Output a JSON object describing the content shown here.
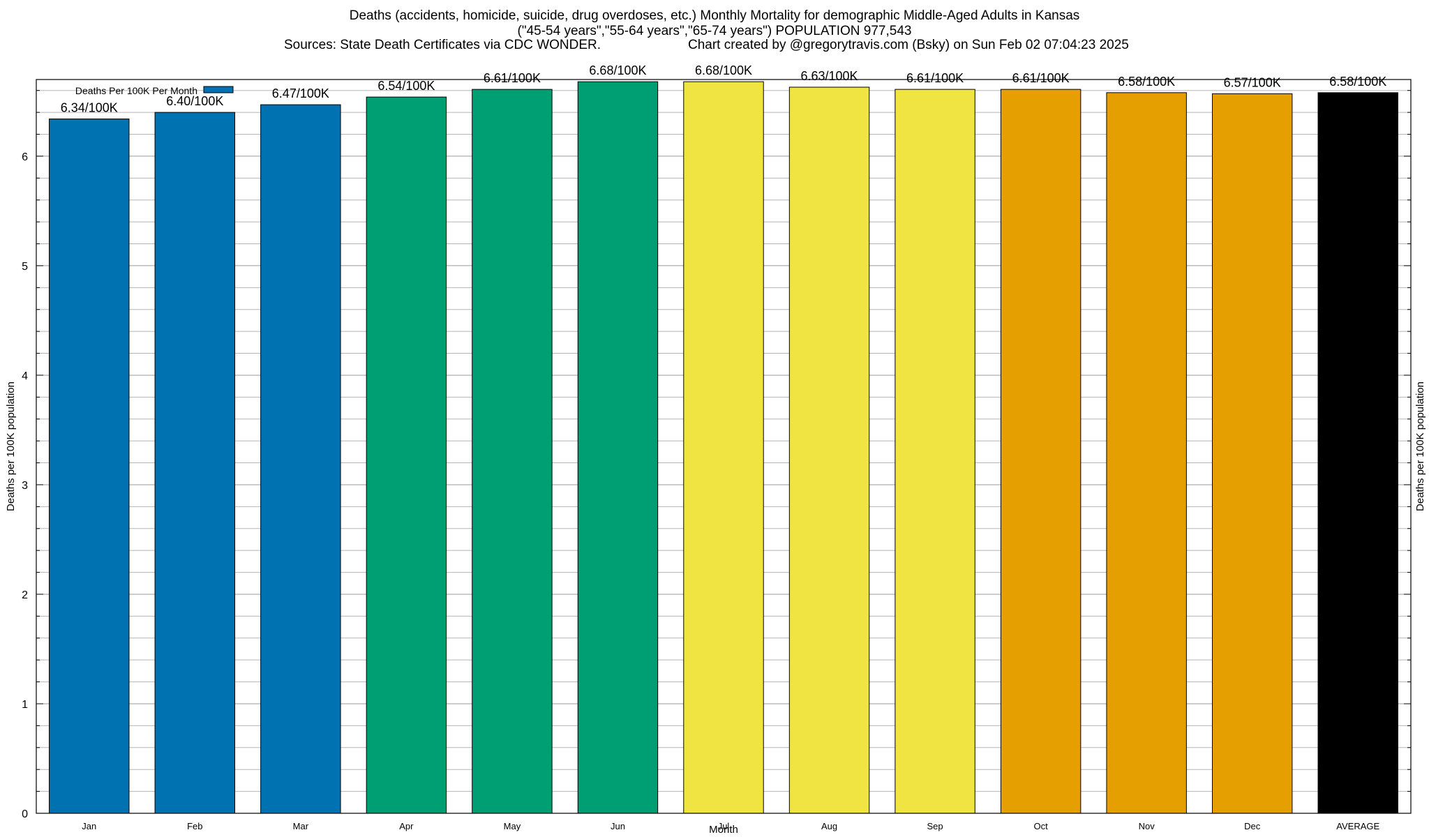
{
  "header": {
    "title": "Deaths (accidents, homicide, suicide, drug overdoses, etc.) Monthly Mortality for demographic Middle-Aged Adults in Kansas",
    "subtitle": "(\"45-54 years\",\"55-64 years\",\"65-74 years\") POPULATION 977,543",
    "sources": "Sources: State Death Certificates via CDC WONDER.",
    "credit": "Chart created by @gregorytravis.com (Bsky) on Sun Feb 02 07:04:23 2025"
  },
  "chart_data": {
    "type": "bar",
    "title": "Deaths (accidents, homicide, suicide, drug overdoses, etc.) Monthly Mortality for demographic Middle-Aged Adults in Kansas",
    "xlabel": "Month",
    "ylabel": "Deaths per 100K population",
    "ylabel_right": "Deaths per 100K population",
    "ylim": [
      0,
      6.7
    ],
    "yticks": [
      0,
      1,
      2,
      3,
      4,
      5,
      6
    ],
    "grid": true,
    "legend": {
      "position": "top-left",
      "entries": [
        {
          "name": "Deaths Per 100K Per Month",
          "color": "#0072b2"
        }
      ]
    },
    "categories": [
      "Jan",
      "Feb",
      "Mar",
      "Apr",
      "May",
      "Jun",
      "Jul",
      "Aug",
      "Sep",
      "Oct",
      "Nov",
      "Dec",
      "AVERAGE"
    ],
    "values": [
      6.34,
      6.4,
      6.47,
      6.54,
      6.61,
      6.68,
      6.68,
      6.63,
      6.61,
      6.61,
      6.58,
      6.57,
      6.58
    ],
    "labels": [
      "6.34/100K",
      "6.40/100K",
      "6.47/100K",
      "6.54/100K",
      "6.61/100K",
      "6.68/100K",
      "6.68/100K",
      "6.63/100K",
      "6.61/100K",
      "6.61/100K",
      "6.58/100K",
      "6.57/100K",
      "6.58/100K"
    ],
    "colors": [
      "#0072b2",
      "#0072b2",
      "#0072b2",
      "#009e73",
      "#009e73",
      "#009e73",
      "#f0e442",
      "#f0e442",
      "#f0e442",
      "#e69f00",
      "#e69f00",
      "#e69f00",
      "#000000"
    ]
  }
}
